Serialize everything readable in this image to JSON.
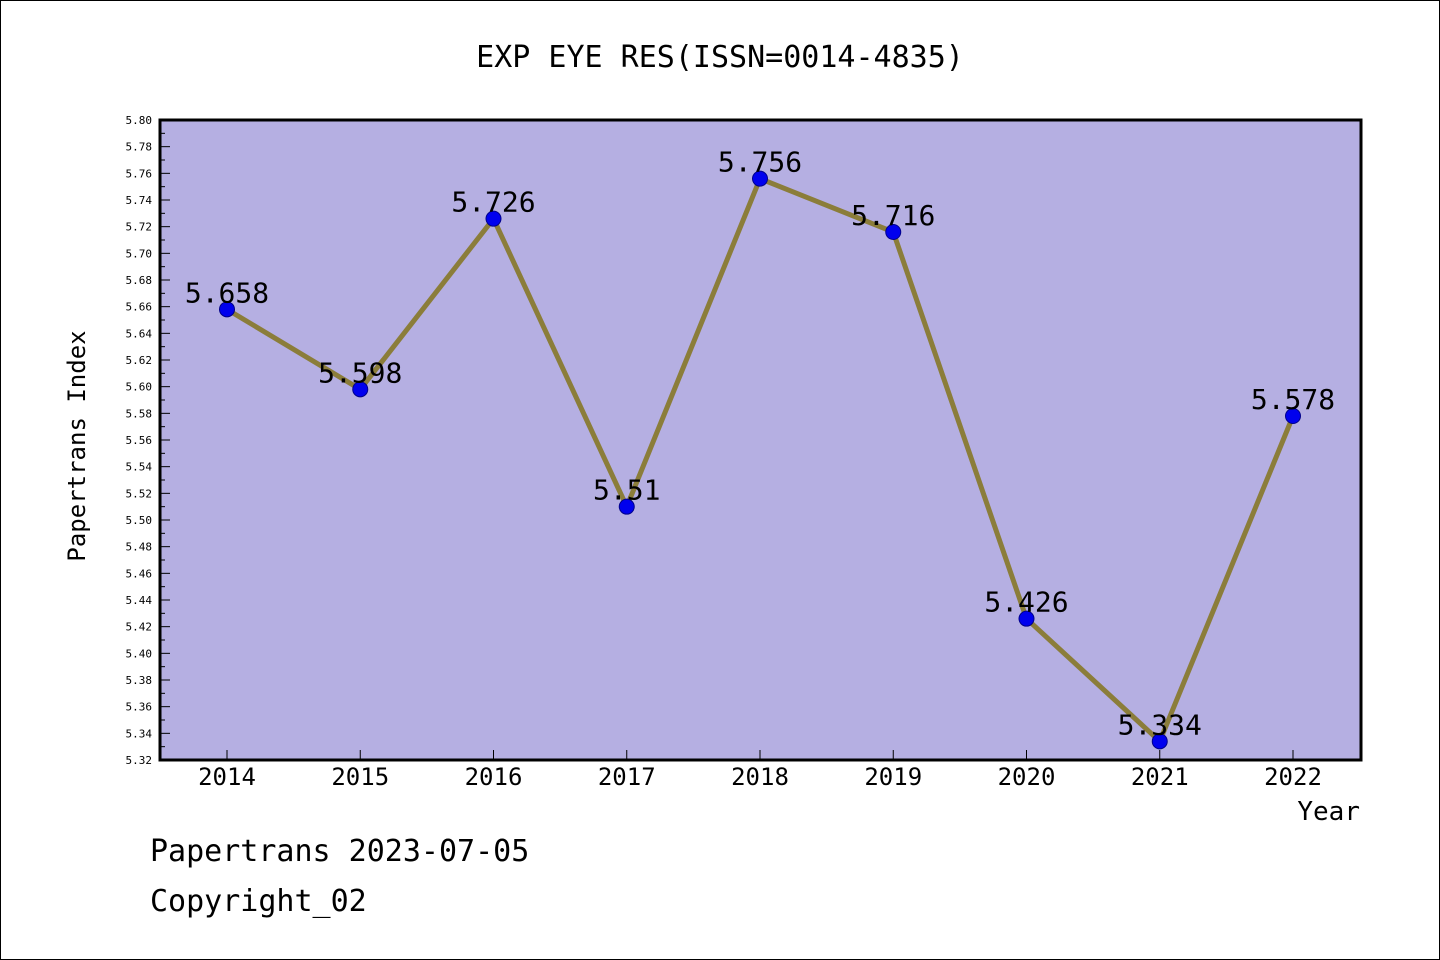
{
  "chart_data": {
    "type": "line",
    "title": "EXP EYE RES(ISSN=0014-4835)",
    "xlabel": "Year",
    "ylabel": "Papertrans Index",
    "categories": [
      "2014",
      "2015",
      "2016",
      "2017",
      "2018",
      "2019",
      "2020",
      "2021",
      "2022"
    ],
    "series": [
      {
        "values": [
          5.658,
          5.598,
          5.726,
          5.51,
          5.756,
          5.716,
          5.426,
          5.334,
          5.578
        ],
        "labels": [
          "5.658",
          "5.598",
          "5.726",
          "5.51",
          "5.756",
          "5.716",
          "5.426",
          "5.334",
          "5.578"
        ]
      }
    ],
    "ylim": [
      5.32,
      5.8
    ],
    "ytick_step": 0.02,
    "grid": false,
    "legend": "none"
  },
  "footer": {
    "line1": "Papertrans 2023-07-05",
    "line2": "Copyright_02"
  },
  "colors": {
    "plot_background": "#b5afe2",
    "line": "#8b7d3a",
    "marker": "#0000ee",
    "axis": "#000000"
  }
}
